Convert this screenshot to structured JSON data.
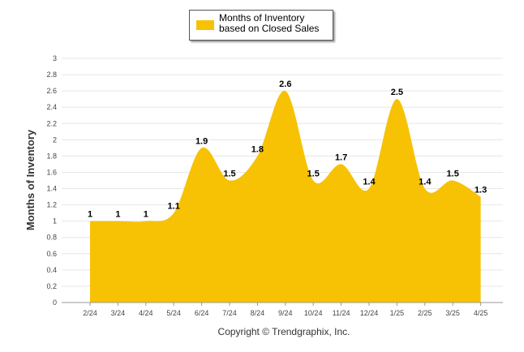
{
  "chart_data": {
    "type": "area",
    "title": "",
    "xlabel": "",
    "ylabel": "Months of Inventory",
    "ylim": [
      0,
      3
    ],
    "ytick_step": 0.2,
    "yticks": [
      "0",
      "0.2",
      "0.4",
      "0.6",
      "0.8",
      "1",
      "1.2",
      "1.4",
      "1.6",
      "1.8",
      "2",
      "2.2",
      "2.4",
      "2.6",
      "2.8",
      "3"
    ],
    "grid": true,
    "legend": "top-center",
    "categories": [
      "2/24",
      "3/24",
      "4/24",
      "5/24",
      "6/24",
      "7/24",
      "8/24",
      "9/24",
      "10/24",
      "11/24",
      "12/24",
      "1/25",
      "2/25",
      "3/25",
      "4/25"
    ],
    "series": [
      {
        "name": "Months of Inventory based on Closed Sales",
        "values": [
          1,
          1,
          1,
          1.1,
          1.9,
          1.5,
          1.8,
          2.6,
          1.5,
          1.7,
          1.4,
          2.5,
          1.4,
          1.5,
          1.3
        ],
        "labels": [
          "1",
          "1",
          "1",
          "1.1",
          "1.9",
          "1.5",
          "1.8",
          "2.6",
          "1.5",
          "1.7",
          "1.4",
          "2.5",
          "1.4",
          "1.5",
          "1.3"
        ],
        "color": "#f7c203"
      }
    ]
  },
  "legend": {
    "label": "Months of Inventory based on Closed Sales"
  },
  "footer": {
    "copyright": "Copyright © Trendgraphix, Inc."
  },
  "colors": {
    "area": "#f7c203",
    "grid": "#e6e6e6"
  }
}
